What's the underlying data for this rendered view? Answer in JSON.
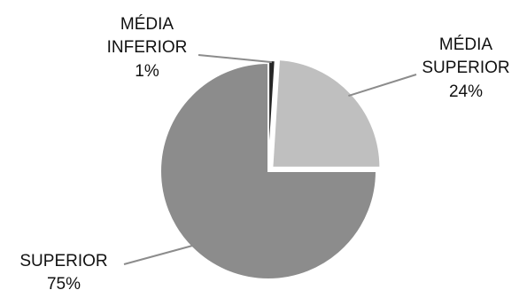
{
  "chart_data": {
    "type": "pie",
    "title": "",
    "slices": [
      {
        "label_lines": [
          "MÉDIA",
          "INFERIOR"
        ],
        "percent_label": "1%",
        "value": 1,
        "color": "#262626"
      },
      {
        "label_lines": [
          "MÉDIA",
          "SUPERIOR"
        ],
        "percent_label": "24%",
        "value": 24,
        "color": "#bfbfbf"
      },
      {
        "label_lines": [
          "SUPERIOR"
        ],
        "percent_label": "75%",
        "value": 75,
        "color": "#8c8c8c"
      }
    ],
    "start_angle": "12 o'clock",
    "direction": "clockwise",
    "legend": "none",
    "data_labels": "outside with leader lines"
  }
}
